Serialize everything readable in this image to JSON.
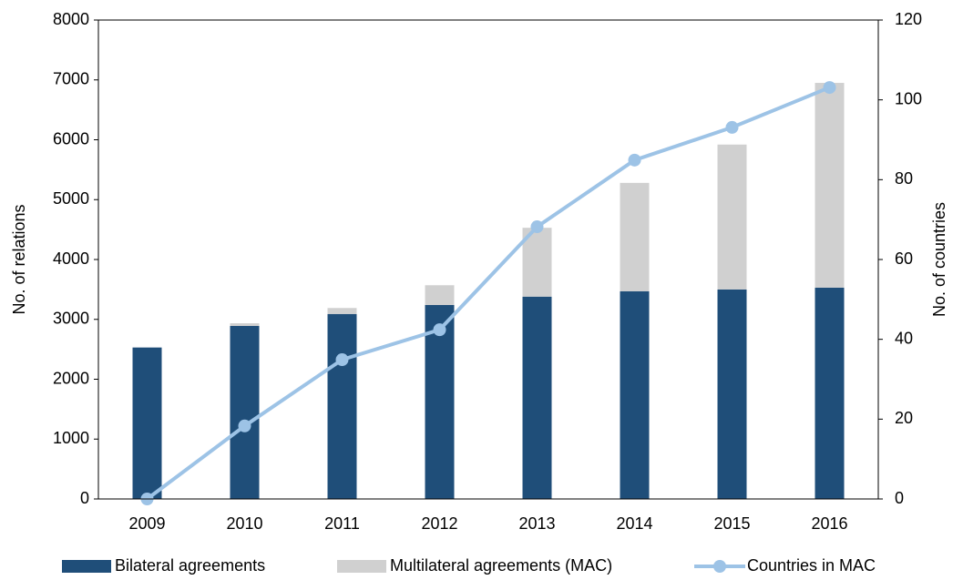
{
  "chart_data": {
    "type": "bar-line",
    "categories": [
      "2009",
      "2010",
      "2011",
      "2012",
      "2013",
      "2014",
      "2015",
      "2016"
    ],
    "series": [
      {
        "name": "Bilateral agreements",
        "color": "#1f4e79",
        "kind": "bar",
        "values": [
          2530,
          2890,
          3090,
          3240,
          3380,
          3470,
          3500,
          3530
        ]
      },
      {
        "name": "Multilateral agreements (MAC)",
        "color": "#d0d0d0",
        "kind": "bar",
        "values": [
          0,
          45,
          100,
          330,
          1150,
          1810,
          2420,
          3420
        ]
      },
      {
        "name": "Countries in MAC",
        "color": "#9dc3e6",
        "kind": "line",
        "axis": "y2",
        "values": [
          0,
          18.3,
          34.9,
          42.4,
          68.2,
          84.9,
          93.1,
          103.1
        ]
      }
    ],
    "y_label": "No. of relations",
    "y2_label": "No. of countries",
    "ylim": [
      0,
      8000
    ],
    "yticks": [
      0,
      1000,
      2000,
      3000,
      4000,
      5000,
      6000,
      7000,
      8000
    ],
    "y2lim": [
      0,
      120
    ],
    "y2ticks": [
      0,
      20,
      40,
      60,
      80,
      100,
      120
    ],
    "legend": "bottom"
  }
}
